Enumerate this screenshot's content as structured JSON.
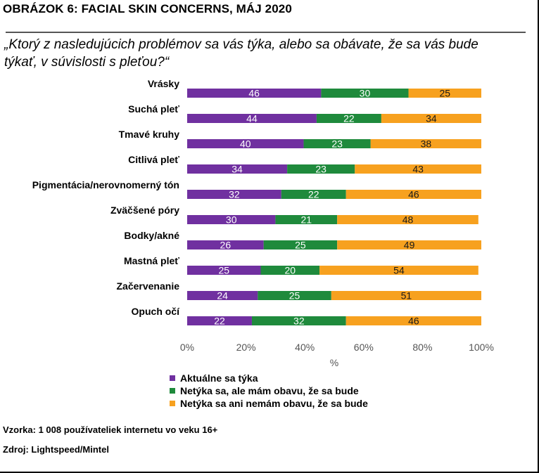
{
  "header": {
    "title": "OBRÁZOK 6: FACIAL SKIN CONCERNS, MÁJ 2020",
    "question": "„Ktorý z nasledujúcich problémov sa vás týka, alebo sa obávate, že sa vás bude týkať, v súvislosti s pleťou?“"
  },
  "chart_data": {
    "type": "bar",
    "orientation": "horizontal",
    "stacked": true,
    "categories": [
      "Vrásky",
      "Suchá pleť",
      "Tmavé kruhy",
      "Citlivá pleť",
      "Pigmentácia/nerovnomerný tón",
      "Zväčšené póry",
      "Bodky/akné",
      "Mastná pleť",
      "Začervenanie",
      "Opuch očí"
    ],
    "series": [
      {
        "name": "Aktuálne sa týka",
        "color": "#7030a0",
        "label_color": "#ffffff",
        "values": [
          46,
          44,
          40,
          34,
          32,
          30,
          26,
          25,
          24,
          22
        ]
      },
      {
        "name": "Netýka sa, ale mám obavu, že sa bude",
        "color": "#1f8a3c",
        "label_color": "#ffffff",
        "values": [
          30,
          22,
          23,
          23,
          22,
          21,
          25,
          20,
          25,
          32
        ]
      },
      {
        "name": "Netýka sa ani nemám obavu, že sa bude",
        "color": "#f7a11f",
        "label_color": "#1a1a1a",
        "values": [
          25,
          34,
          38,
          43,
          46,
          48,
          49,
          54,
          51,
          46
        ]
      }
    ],
    "xlim": [
      0,
      100
    ],
    "xticks": [
      "0%",
      "20%",
      "40%",
      "60%",
      "80%",
      "100%"
    ],
    "xlabel": "%",
    "legend_position": "bottom-left"
  },
  "footer": {
    "sample": "Vzorka: 1 008 používateliek internetu vo veku 16+",
    "source": "Zdroj: Lightspeed/Mintel"
  }
}
